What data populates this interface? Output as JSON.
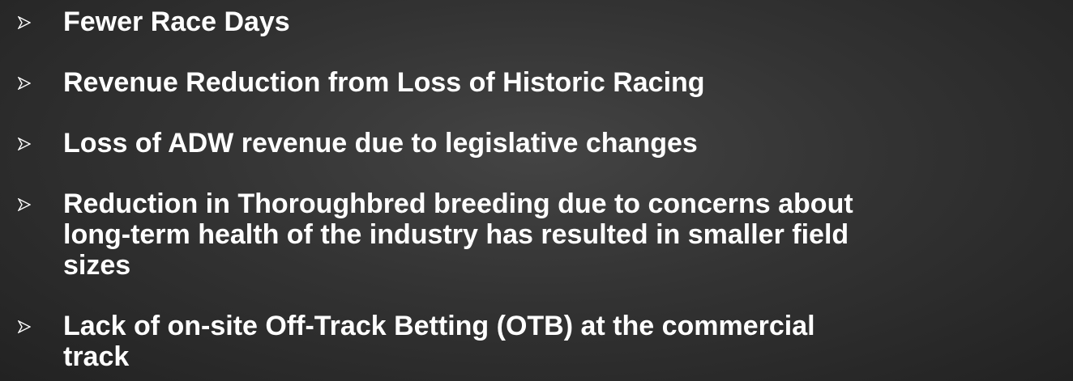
{
  "bullets": [
    {
      "lines": [
        "Fewer Race Days"
      ]
    },
    {
      "lines": [
        "Revenue Reduction from Loss of Historic Racing"
      ]
    },
    {
      "lines": [
        "Loss of ADW revenue due to legislative changes"
      ]
    },
    {
      "lines": [
        "Reduction in Thoroughbred breeding due to concerns about",
        "long-term health of the industry has resulted in smaller field",
        "sizes"
      ]
    },
    {
      "lines": [
        "Lack of on-site Off-Track Betting (OTB) at the commercial",
        "track"
      ]
    }
  ]
}
